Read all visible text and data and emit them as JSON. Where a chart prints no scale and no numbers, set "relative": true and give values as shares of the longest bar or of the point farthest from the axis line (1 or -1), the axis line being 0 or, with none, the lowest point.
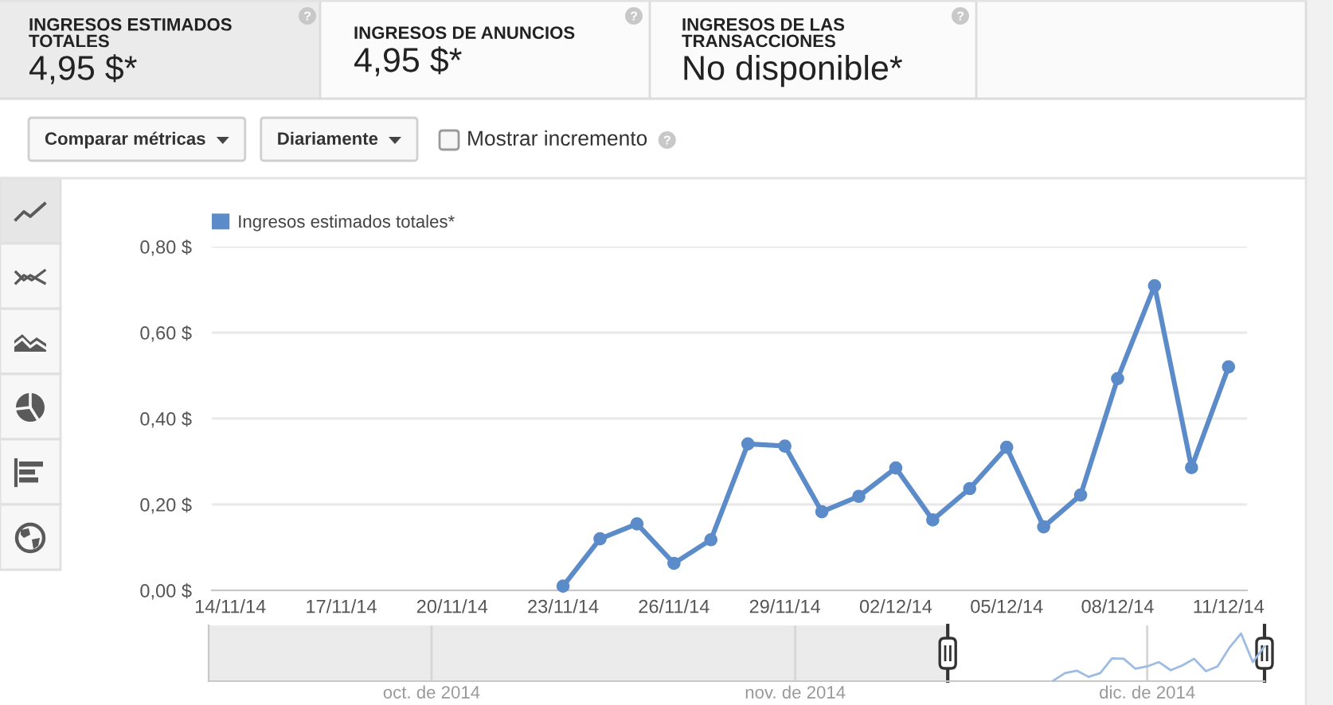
{
  "chart_data": [
    {
      "type": "other",
      "annotations": [
        "INGRESOS ESTIMADOS TOTALES",
        "4,95 $*",
        "INGRESOS DE ANUNCIOS",
        "4,95 $*",
        "INGRESOS DE LAS TRANSACCIONES",
        "No disponible*",
        "Comparar métricas",
        "Diariamente",
        "Mostrar incremento"
      ]
    },
    {
      "type": "line",
      "x": [
        "2014-11-23",
        "2014-11-24",
        "2014-11-25",
        "2014-11-26",
        "2014-11-27",
        "2014-11-28",
        "2014-11-29",
        "2014-11-30",
        "2014-12-01",
        "2014-12-02",
        "2014-12-03",
        "2014-12-04",
        "2014-12-05",
        "2014-12-06",
        "2014-12-07",
        "2014-12-08",
        "2014-12-09",
        "2014-12-10",
        "2014-12-11"
      ],
      "series": [
        {
          "name": "Ingresos estimados totales*",
          "color": "#5b8bc9",
          "values": [
            0.01,
            0.12,
            0.155,
            0.063,
            0.118,
            0.341,
            0.336,
            0.183,
            0.219,
            0.285,
            0.164,
            0.237,
            0.333,
            0.148,
            0.222,
            0.493,
            0.709,
            0.286,
            0.52
          ]
        }
      ],
      "xlim": [
        "2014-11-13T12:00",
        "2014-12-11T12:00"
      ],
      "xticks": [
        {
          "value": "2014-11-14",
          "label": "14/11/14"
        },
        {
          "value": "2014-11-17",
          "label": "17/11/14"
        },
        {
          "value": "2014-11-20",
          "label": "20/11/14"
        },
        {
          "value": "2014-11-23",
          "label": "23/11/14"
        },
        {
          "value": "2014-11-26",
          "label": "26/11/14"
        },
        {
          "value": "2014-11-29",
          "label": "29/11/14"
        },
        {
          "value": "2014-12-02",
          "label": "02/12/14"
        },
        {
          "value": "2014-12-05",
          "label": "05/12/14"
        },
        {
          "value": "2014-12-08",
          "label": "08/12/14"
        },
        {
          "value": "2014-12-11",
          "label": "11/12/14"
        }
      ],
      "ylim": [
        0,
        0.8
      ],
      "yticks": [
        {
          "value": 0,
          "label": "0,00 $"
        },
        {
          "value": 0.2,
          "label": "0,20 $"
        },
        {
          "value": 0.4,
          "label": "0,40 $"
        },
        {
          "value": 0.6,
          "label": "0,60 $"
        },
        {
          "value": 0.8,
          "label": "0,80 $"
        }
      ],
      "grid": "y",
      "legend": "top left",
      "marker": "circle"
    },
    {
      "type": "line",
      "relative": true,
      "x": [
        "2014-11-23",
        "2014-11-24",
        "2014-11-25",
        "2014-11-26",
        "2014-11-27",
        "2014-11-28",
        "2014-11-29",
        "2014-11-30",
        "2014-12-01",
        "2014-12-02",
        "2014-12-03",
        "2014-12-04",
        "2014-12-05",
        "2014-12-06",
        "2014-12-07",
        "2014-12-08",
        "2014-12-09",
        "2014-12-10",
        "2014-12-11"
      ],
      "series": [
        {
          "color": "#9dbbe3",
          "values": [
            0.01,
            0.17,
            0.22,
            0.09,
            0.17,
            0.48,
            0.47,
            0.26,
            0.31,
            0.4,
            0.23,
            0.33,
            0.47,
            0.21,
            0.31,
            0.7,
            1,
            0.4,
            0.73
          ]
        }
      ],
      "xlim": [
        "2014-09-12",
        "2014-12-11"
      ],
      "xticks": [
        {
          "value": "2014-10-01",
          "label": "oct. de 2014"
        },
        {
          "value": "2014-11-01",
          "label": "nov. de 2014"
        },
        {
          "value": "2014-12-01",
          "label": "dic. de 2014"
        }
      ],
      "grid": "x",
      "bands": [
        {
          "axis": "x",
          "from": "2014-09-12",
          "to": "2014-11-14",
          "color": "#ebebeb"
        }
      ],
      "ref_lines": [
        {
          "axis": "x",
          "value": "2014-11-14",
          "color": "#333333"
        },
        {
          "axis": "x",
          "value": "2014-12-11",
          "color": "#333333"
        }
      ]
    }
  ]
}
